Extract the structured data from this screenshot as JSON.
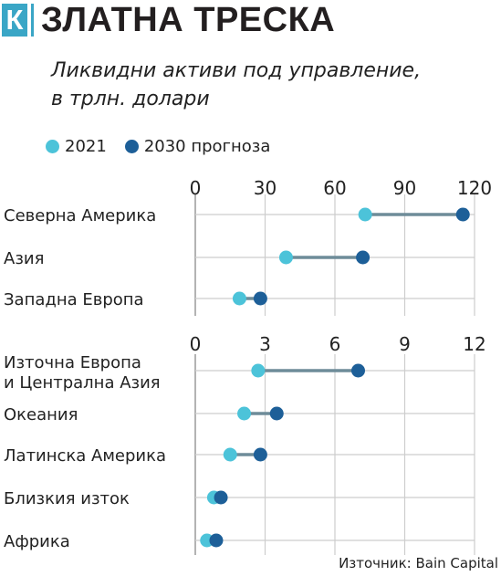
{
  "brand": {
    "letter": "К",
    "name": "ЗЛАТНА ТРЕСКА"
  },
  "title_line1": "Ликвидни активи под управление,",
  "title_line2": "в трлн. долари",
  "legend": [
    {
      "label": "2021",
      "color": "#4cc3d9"
    },
    {
      "label": "2030 прогноза",
      "color": "#1d5f98"
    }
  ],
  "colors": {
    "c2021": "#4cc3d9",
    "c2030": "#1d5f98",
    "connector": "#6e8c99",
    "grid": "#cdcdcd",
    "axis": "#9a9a9a"
  },
  "source": "Източник: Bain Capital",
  "chart_data": [
    {
      "type": "dot-range",
      "xlim": [
        0,
        120
      ],
      "ticks": [
        "0",
        "30",
        "60",
        "90",
        "120"
      ],
      "categories": [
        "Северна Америка",
        "Азия",
        "Западна Европа"
      ],
      "series": [
        {
          "name": "2021",
          "values": [
            73,
            39,
            19
          ]
        },
        {
          "name": "2030 прогноза",
          "values": [
            115,
            72,
            28
          ]
        }
      ]
    },
    {
      "type": "dot-range",
      "xlim": [
        0,
        12
      ],
      "ticks": [
        "0",
        "3",
        "6",
        "9",
        "12"
      ],
      "categories": [
        "Източна Европа\nи Централна Азия",
        "Океания",
        "Латинска Америка",
        "Близкия изток",
        "Африка"
      ],
      "series": [
        {
          "name": "2021",
          "values": [
            2.7,
            2.1,
            1.5,
            0.8,
            0.5
          ]
        },
        {
          "name": "2030 прогноза",
          "values": [
            7.0,
            3.5,
            2.8,
            1.1,
            0.9
          ]
        }
      ]
    }
  ]
}
